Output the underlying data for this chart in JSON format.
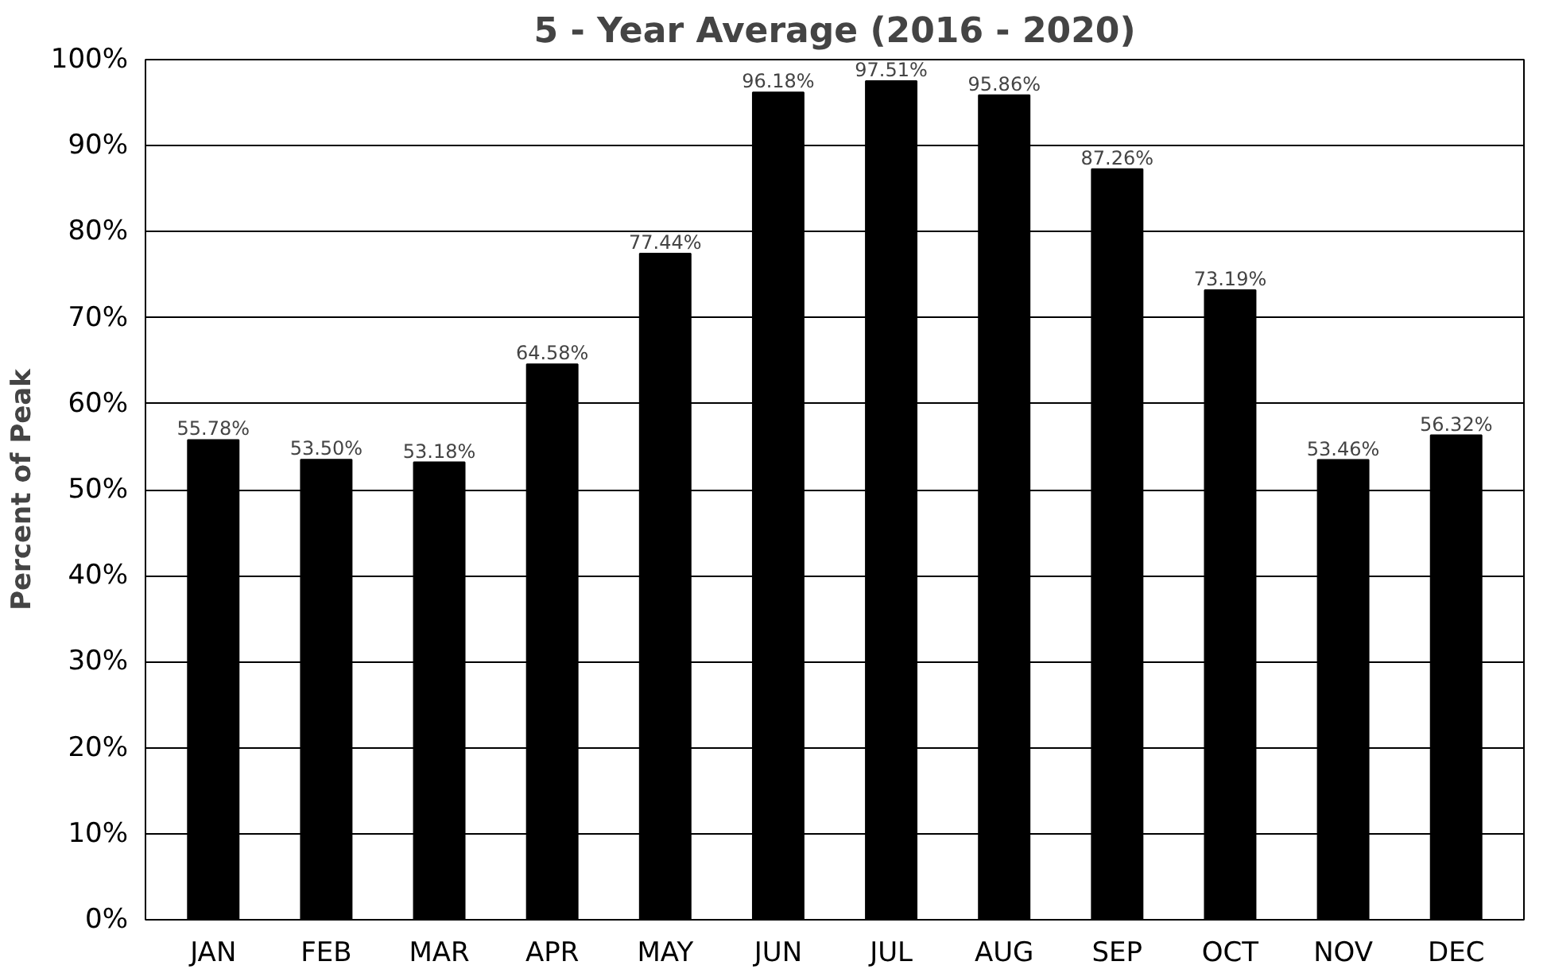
{
  "chart_data": {
    "type": "bar",
    "title": "5 - Year Average (2016 - 2020)",
    "ylabel": "Percent of Peak",
    "categories": [
      "JAN",
      "FEB",
      "MAR",
      "APR",
      "MAY",
      "JUN",
      "JUL",
      "AUG",
      "SEP",
      "OCT",
      "NOV",
      "DEC"
    ],
    "values": [
      55.78,
      53.5,
      53.18,
      64.58,
      77.44,
      96.18,
      97.51,
      95.86,
      87.26,
      73.19,
      53.46,
      56.32
    ],
    "value_labels": [
      "55.78%",
      "53.50%",
      "53.18%",
      "64.58%",
      "77.44%",
      "96.18%",
      "97.51%",
      "95.86%",
      "87.26%",
      "73.19%",
      "53.46%",
      "56.32%"
    ],
    "color": "#000000",
    "ylim": [
      0,
      100
    ],
    "yticks": [
      {
        "value": 0,
        "label": "0%"
      },
      {
        "value": 10,
        "label": "10%"
      },
      {
        "value": 20,
        "label": "20%"
      },
      {
        "value": 30,
        "label": "30%"
      },
      {
        "value": 40,
        "label": "40%"
      },
      {
        "value": 50,
        "label": "50%"
      },
      {
        "value": 60,
        "label": "60%"
      },
      {
        "value": 70,
        "label": "70%"
      },
      {
        "value": 80,
        "label": "80%"
      },
      {
        "value": 90,
        "label": "90%"
      },
      {
        "value": 100,
        "label": "100%"
      }
    ],
    "grid": "y"
  }
}
